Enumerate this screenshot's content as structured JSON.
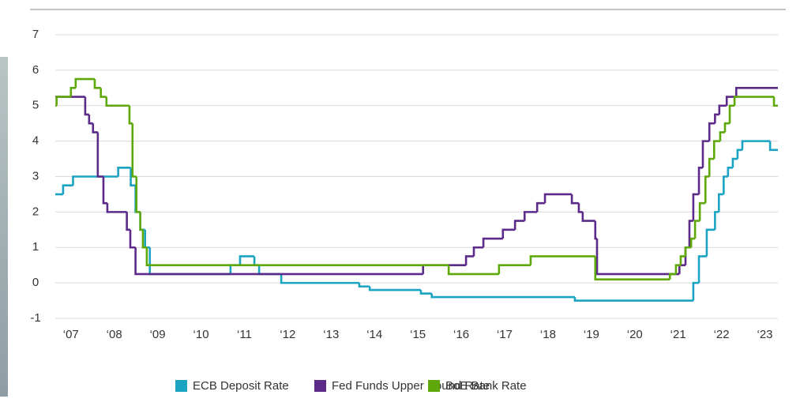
{
  "chart_data": {
    "type": "step",
    "xlim": [
      2006.64,
      2023.3
    ],
    "ylim": [
      -1,
      7
    ],
    "yticks": [
      -1,
      0,
      1,
      2,
      3,
      4,
      5,
      6,
      7
    ],
    "xticks": [
      {
        "value": 2007,
        "label": "‘07"
      },
      {
        "value": 2008,
        "label": "‘08"
      },
      {
        "value": 2009,
        "label": "‘09"
      },
      {
        "value": 2010,
        "label": "‘10"
      },
      {
        "value": 2011,
        "label": "‘11"
      },
      {
        "value": 2012,
        "label": "‘12"
      },
      {
        "value": 2013,
        "label": "‘13"
      },
      {
        "value": 2014,
        "label": "‘14"
      },
      {
        "value": 2015,
        "label": "‘15"
      },
      {
        "value": 2016,
        "label": "‘16"
      },
      {
        "value": 2017,
        "label": "‘17"
      },
      {
        "value": 2018,
        "label": "‘18"
      },
      {
        "value": 2019,
        "label": "‘19"
      },
      {
        "value": 2020,
        "label": "‘20"
      },
      {
        "value": 2021,
        "label": "‘21"
      },
      {
        "value": 2022,
        "label": "‘22"
      },
      {
        "value": 2023,
        "label": "‘23"
      }
    ],
    "grid": true,
    "legend": "bottom",
    "series": [
      {
        "name": "ECB Deposit Rate",
        "color": "#1ba3c2",
        "x": [
          2006.64,
          2006.82,
          2007.05,
          2008.09,
          2008.38,
          2008.49,
          2008.6,
          2008.71,
          2008.82,
          2010.68,
          2010.9,
          2011.23,
          2011.34,
          2011.85,
          2013.65,
          2013.89,
          2015.07,
          2015.32,
          2018.62,
          2021.35,
          2021.48,
          2021.66,
          2021.85,
          2021.94,
          2022.05,
          2022.15,
          2022.26,
          2022.37,
          2022.48,
          2023.12,
          2023.3
        ],
        "values": [
          2.5,
          2.75,
          3.0,
          3.25,
          2.75,
          2.0,
          1.5,
          1.0,
          0.25,
          0.5,
          0.75,
          0.5,
          0.25,
          0,
          -0.1,
          -0.2,
          -0.3,
          -0.4,
          -0.5,
          0,
          0.75,
          1.5,
          2.0,
          2.5,
          3.0,
          3.25,
          3.5,
          3.75,
          4.0,
          3.75,
          3.75
        ]
      },
      {
        "name": "Fed Funds Upper Bound Rate",
        "color": "#5c2a88",
        "x": [
          2006.64,
          2007.33,
          2007.42,
          2007.51,
          2007.62,
          2007.75,
          2007.84,
          2008.29,
          2008.37,
          2008.49,
          2015.12,
          2016.11,
          2016.29,
          2016.51,
          2016.96,
          2017.24,
          2017.46,
          2017.75,
          2017.93,
          2018.55,
          2018.71,
          2018.8,
          2019.09,
          2019.13,
          2021.03,
          2021.17,
          2021.26,
          2021.35,
          2021.48,
          2021.57,
          2021.72,
          2021.85,
          2021.95,
          2022.12,
          2022.34,
          2023.3
        ],
        "values": [
          5.25,
          4.75,
          4.5,
          4.25,
          3.0,
          2.25,
          2.0,
          1.5,
          1.0,
          0.25,
          0.5,
          0.75,
          1.0,
          1.25,
          1.5,
          1.75,
          2.0,
          2.25,
          2.5,
          2.25,
          2.0,
          1.75,
          1.25,
          0.25,
          0.5,
          1.0,
          1.75,
          2.5,
          3.25,
          4.0,
          4.5,
          4.75,
          5.0,
          5.25,
          5.5,
          5.5
        ]
      },
      {
        "name": "BoE Bank Rate",
        "color": "#5ea80a",
        "x": [
          2006.64,
          2006.67,
          2007.0,
          2007.11,
          2007.55,
          2007.69,
          2007.82,
          2008.35,
          2008.42,
          2008.51,
          2008.6,
          2008.66,
          2008.75,
          2015.71,
          2016.87,
          2017.6,
          2019.09,
          2020.81,
          2020.95,
          2021.06,
          2021.17,
          2021.3,
          2021.39,
          2021.5,
          2021.63,
          2021.72,
          2021.83,
          2021.97,
          2022.08,
          2022.19,
          2022.3,
          2023.21,
          2023.3
        ],
        "values": [
          5.0,
          5.25,
          5.5,
          5.75,
          5.5,
          5.25,
          5.0,
          4.5,
          3.0,
          2.0,
          1.5,
          1.0,
          0.5,
          0.25,
          0.5,
          0.75,
          0.1,
          0.25,
          0.5,
          0.75,
          1.0,
          1.25,
          1.75,
          2.25,
          3.0,
          3.5,
          4.0,
          4.25,
          4.5,
          5.0,
          5.25,
          5.0,
          5.0
        ]
      }
    ]
  }
}
